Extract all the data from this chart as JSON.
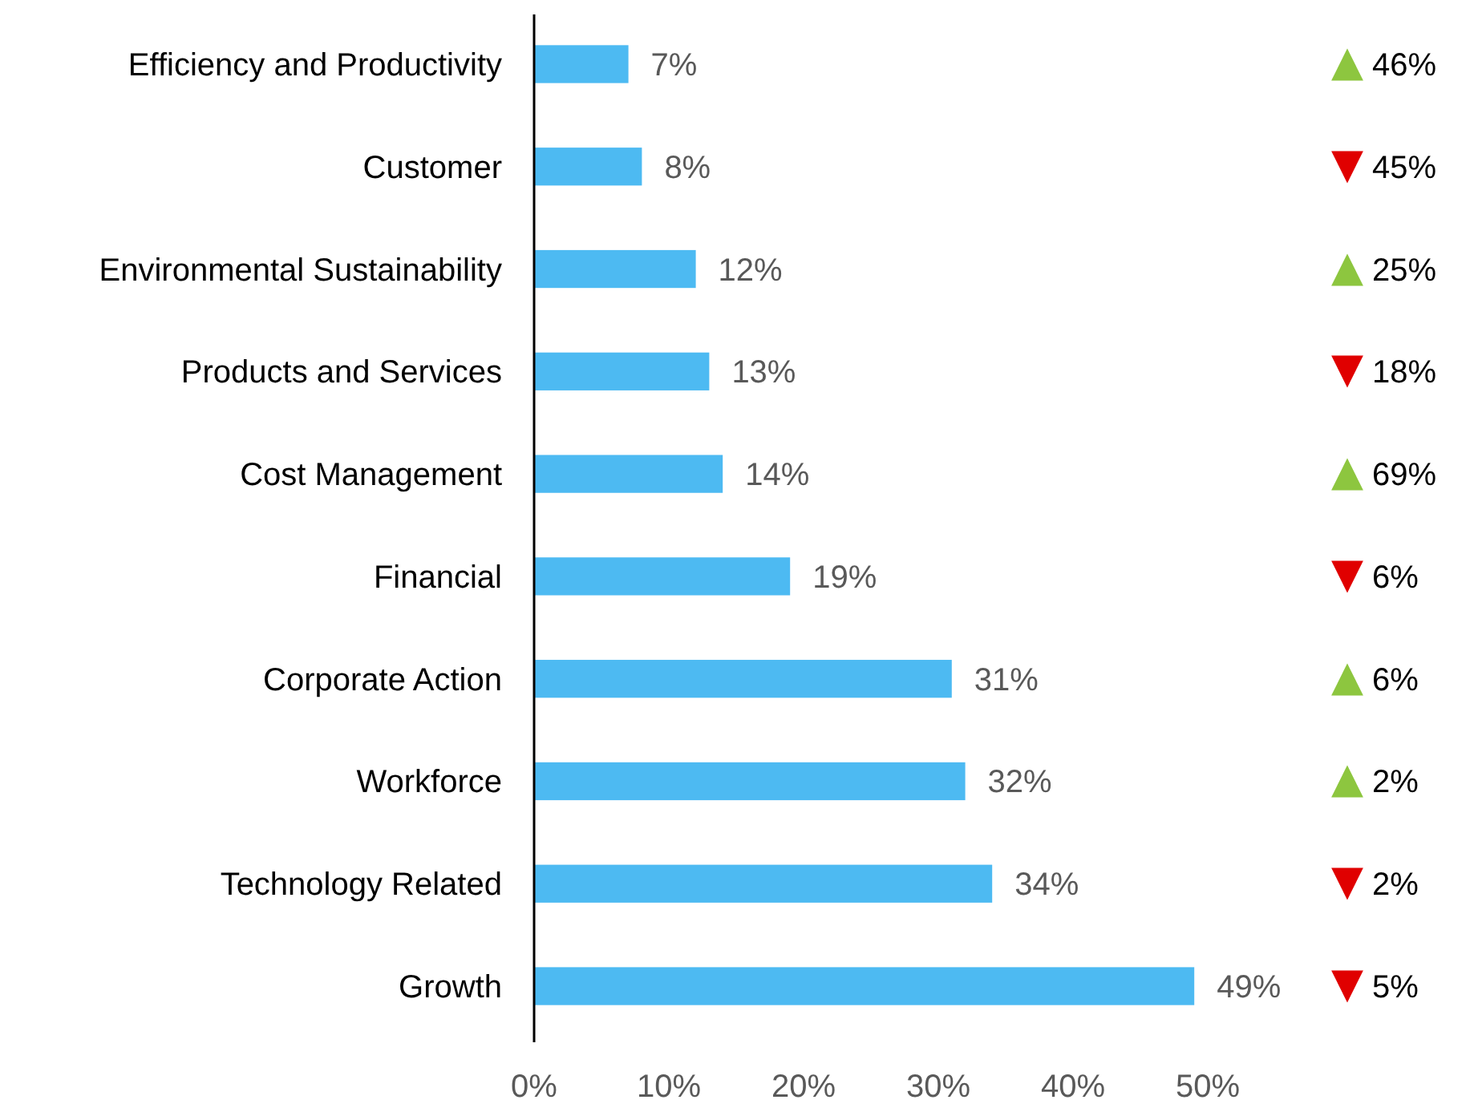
{
  "chart_data": {
    "type": "bar",
    "orientation": "horizontal",
    "categories": [
      "Efficiency and Productivity",
      "Customer",
      "Environmental Sustainability",
      "Products and Services",
      "Cost Management",
      "Financial",
      "Corporate Action",
      "Workforce",
      "Technology Related",
      "Growth"
    ],
    "values": [
      7,
      8,
      12,
      13,
      14,
      19,
      31,
      32,
      34,
      49
    ],
    "value_labels": [
      "7%",
      "8%",
      "12%",
      "13%",
      "14%",
      "19%",
      "31%",
      "32%",
      "34%",
      "49%"
    ],
    "color": "#4dbaf2",
    "xlim": [
      0,
      50
    ],
    "xticks": [
      {
        "value": 0,
        "label": "0%"
      },
      {
        "value": 10,
        "label": "10%"
      },
      {
        "value": 20,
        "label": "20%"
      },
      {
        "value": 30,
        "label": "30%"
      },
      {
        "value": 40,
        "label": "40%"
      },
      {
        "value": 50,
        "label": "50%"
      }
    ],
    "grid": false,
    "annotations": [
      "▲ 46%",
      "▼ 45%",
      "▲ 25%",
      "▼ 18%",
      "▲ 69%",
      "▼ 6%",
      "▲ 6%",
      "▲ 2%",
      "▼ 2%",
      "▼ 5%"
    ]
  }
}
